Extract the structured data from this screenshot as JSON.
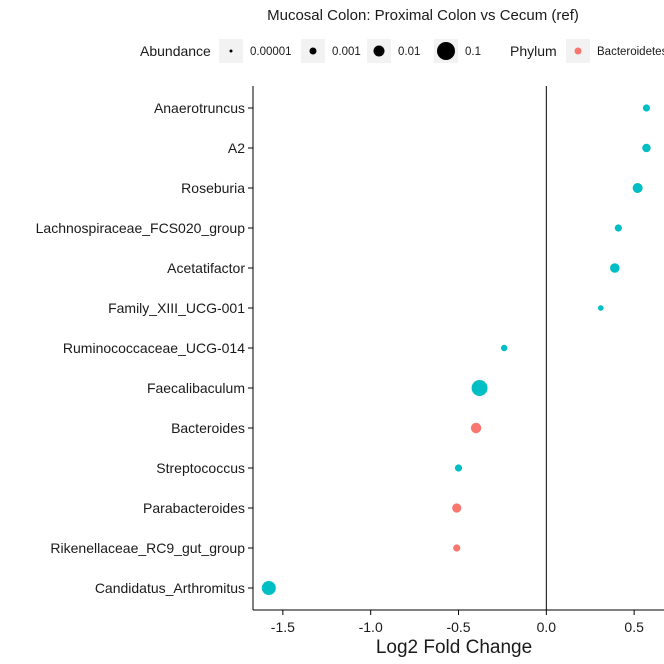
{
  "chart_data": {
    "type": "scatter",
    "title": "Mucosal Colon: Proximal Colon vs Cecum (ref)",
    "xlabel": "Log2 Fold Change",
    "ylabel": "",
    "xlim": [
      -1.67,
      0.67
    ],
    "xticks": [
      -1.5,
      -1.0,
      -0.5,
      0.0,
      0.5
    ],
    "xtick_labels": [
      "-1.5",
      "-1.0",
      "-0.5",
      "0.0",
      "0.5"
    ],
    "vline": 0,
    "grid": false,
    "legend": {
      "placement": "top",
      "size_title": "Abundance",
      "size_entries": [
        {
          "label": "0.00001",
          "size": 1.5
        },
        {
          "label": "0.001",
          "size": 3.5
        },
        {
          "label": "0.01",
          "size": 5.5
        },
        {
          "label": "0.1",
          "size": 9
        }
      ],
      "color_title": "Phylum",
      "color_entries": [
        {
          "label": "Bacteroidetes",
          "color": "#F8766D"
        }
      ]
    },
    "categories": [
      "Anaerotruncus",
      "A2",
      "Roseburia",
      "Lachnospiraceae_FCS020_group",
      "Acetatifactor",
      "Family_XIII_UCG-001",
      "Ruminococcaceae_UCG-014",
      "Faecalibaculum",
      "Bacteroides",
      "Streptococcus",
      "Parabacteroides",
      "Rikenellaceae_RC9_gut_group",
      "Candidatus_Arthromitus"
    ],
    "points": [
      {
        "genus": "Anaerotruncus",
        "x": 0.57,
        "size": 3.6,
        "color": "#00BFC4"
      },
      {
        "genus": "A2",
        "x": 0.57,
        "size": 4.2,
        "color": "#00BFC4"
      },
      {
        "genus": "Roseburia",
        "x": 0.52,
        "size": 5.0,
        "color": "#00BFC4"
      },
      {
        "genus": "Lachnospiraceae_FCS020_group",
        "x": 0.41,
        "size": 3.6,
        "color": "#00BFC4"
      },
      {
        "genus": "Acetatifactor",
        "x": 0.39,
        "size": 4.8,
        "color": "#00BFC4"
      },
      {
        "genus": "Family_XIII_UCG-001",
        "x": 0.31,
        "size": 2.8,
        "color": "#00BFC4"
      },
      {
        "genus": "Ruminococcaceae_UCG-014",
        "x": -0.24,
        "size": 3.2,
        "color": "#00BFC4"
      },
      {
        "genus": "Faecalibaculum",
        "x": -0.38,
        "size": 8.0,
        "color": "#00BFC4"
      },
      {
        "genus": "Bacteroides",
        "x": -0.4,
        "size": 5.2,
        "color": "#F8766D"
      },
      {
        "genus": "Streptococcus",
        "x": -0.5,
        "size": 3.6,
        "color": "#00BFC4"
      },
      {
        "genus": "Parabacteroides",
        "x": -0.51,
        "size": 4.6,
        "color": "#F8766D"
      },
      {
        "genus": "Rikenellaceae_RC9_gut_group",
        "x": -0.51,
        "size": 3.6,
        "color": "#F8766D"
      },
      {
        "genus": "Candidatus_Arthromitus",
        "x": -1.58,
        "size": 7.0,
        "color": "#00BFC4"
      }
    ]
  }
}
